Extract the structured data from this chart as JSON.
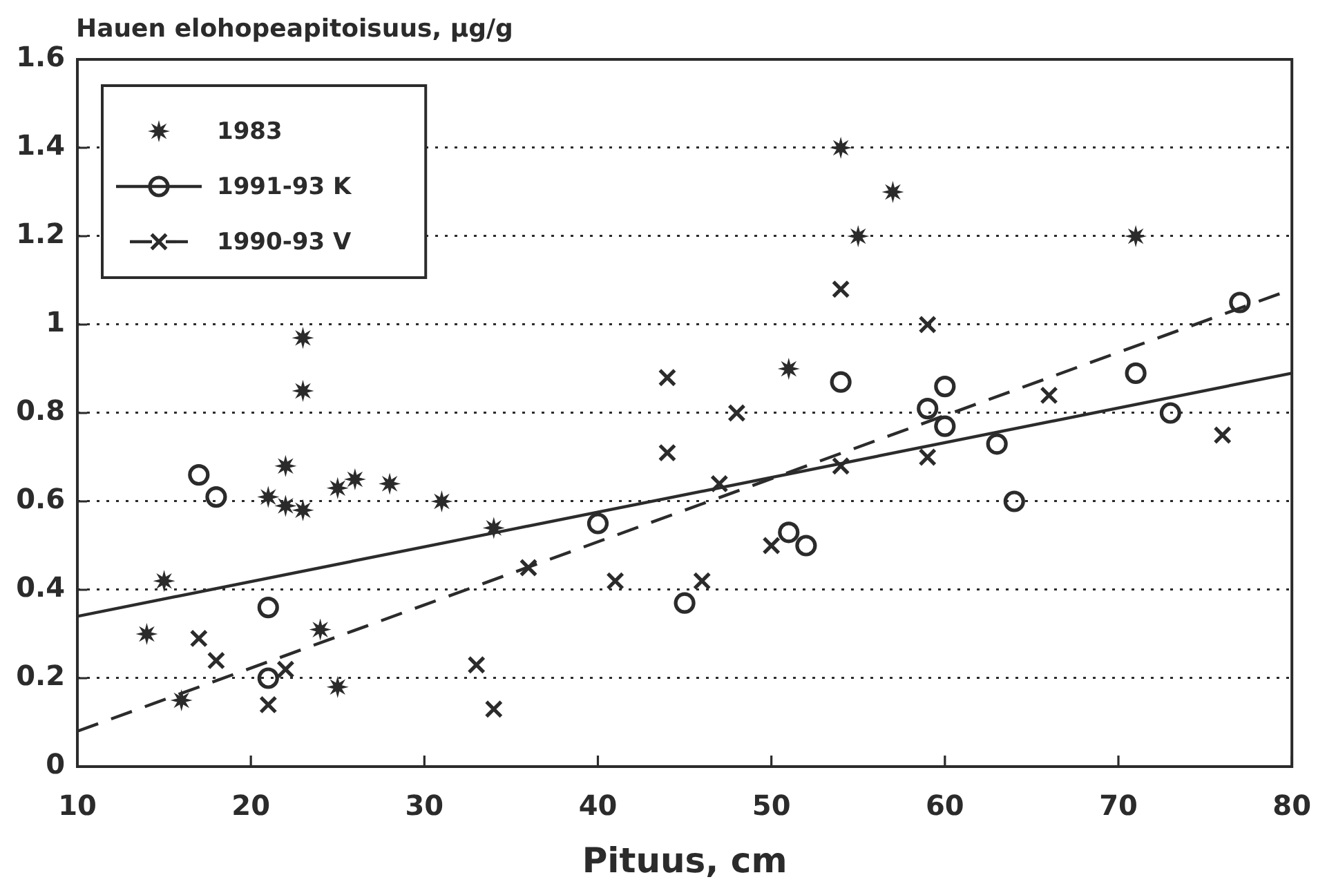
{
  "chart_data": {
    "type": "scatter",
    "ylabel": "Hauen elohopeapitoisuus, μg/g",
    "xlabel": "Pituus, cm",
    "xlim": [
      10,
      80
    ],
    "xticks": [
      10,
      20,
      30,
      40,
      50,
      60,
      70,
      80
    ],
    "ylim": [
      0,
      1.6
    ],
    "yticks": [
      0,
      0.2,
      0.4,
      0.6,
      0.8,
      1,
      1.2,
      1.4,
      1.6
    ],
    "grid": "y",
    "legend": "top left",
    "series": [
      {
        "name": "1983",
        "color": "#2b2b2b",
        "marker": "star",
        "x": [
          14,
          15,
          16,
          21,
          22,
          22,
          23,
          23,
          23,
          24,
          25,
          25,
          26,
          28,
          31,
          34,
          51,
          54,
          55,
          57,
          71
        ],
        "values": [
          0.3,
          0.42,
          0.15,
          0.61,
          0.68,
          0.59,
          0.97,
          0.85,
          0.58,
          0.31,
          0.63,
          0.18,
          0.65,
          0.64,
          0.6,
          0.54,
          0.9,
          1.4,
          1.2,
          1.3,
          1.2
        ]
      },
      {
        "color": "#2b2b2b",
        "marker": "circle",
        "x": [
          17,
          18,
          21,
          21,
          40,
          45,
          51,
          52,
          54,
          59,
          60,
          60,
          63,
          64,
          71,
          73,
          77
        ],
        "values": [
          0.66,
          0.61,
          0.36,
          0.2,
          0.55,
          0.37,
          0.53,
          0.5,
          0.87,
          0.81,
          0.86,
          0.77,
          0.73,
          0.6,
          0.89,
          0.8,
          1.05
        ]
      },
      {
        "name": "1991-93 K",
        "type": "line",
        "color": "#2b2b2b",
        "marker": "none",
        "line_style": "solid",
        "x": [
          10,
          80
        ],
        "values": [
          0.34,
          0.89
        ]
      },
      {
        "color": "#2b2b2b",
        "marker": "cross",
        "x": [
          17,
          18,
          21,
          22,
          33,
          34,
          36,
          41,
          44,
          44,
          46,
          47,
          48,
          50,
          54,
          54,
          59,
          59,
          66,
          76
        ],
        "values": [
          0.29,
          0.24,
          0.14,
          0.22,
          0.23,
          0.13,
          0.45,
          0.42,
          0.88,
          0.71,
          0.42,
          0.64,
          0.8,
          0.5,
          1.08,
          0.68,
          1.0,
          0.7,
          0.84,
          0.75
        ]
      },
      {
        "name": "1990-93 V",
        "type": "line",
        "color": "#2b2b2b",
        "marker": "none",
        "line_style": "dashed",
        "x": [
          10,
          80
        ],
        "values": [
          0.08,
          1.08
        ]
      }
    ]
  }
}
